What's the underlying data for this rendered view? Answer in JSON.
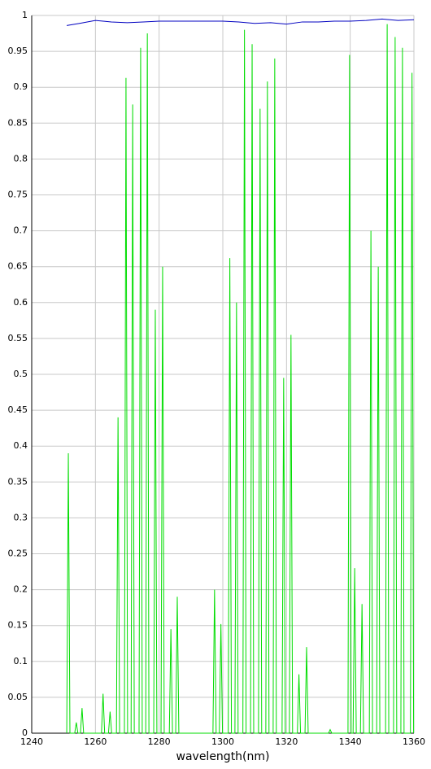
{
  "chart_data": {
    "type": "line",
    "xlabel": "wavelength(nm)",
    "xlim": [
      1240,
      1360
    ],
    "ylim": [
      0,
      1
    ],
    "xticks": [
      1240,
      1260,
      1280,
      1300,
      1320,
      1340,
      1360
    ],
    "yticks": [
      0,
      0.05,
      0.1,
      0.15,
      0.2,
      0.25,
      0.3,
      0.35,
      0.4,
      0.45,
      0.5,
      0.55,
      0.6,
      0.65,
      0.7,
      0.75,
      0.8,
      0.85,
      0.9,
      0.95,
      1
    ],
    "grid": true,
    "series": [
      {
        "color": "#0000c0",
        "x": [
          1251,
          1255,
          1260,
          1265,
          1270,
          1275,
          1280,
          1290,
          1300,
          1305,
          1310,
          1315,
          1320,
          1325,
          1330,
          1335,
          1340,
          1345,
          1350,
          1355,
          1360
        ],
        "values": [
          0.986,
          0.989,
          0.993,
          0.991,
          0.99,
          0.991,
          0.992,
          0.992,
          0.992,
          0.991,
          0.989,
          0.99,
          0.988,
          0.991,
          0.991,
          0.992,
          0.992,
          0.993,
          0.995,
          0.993,
          0.994
        ]
      },
      {
        "color": "#00dd00",
        "x": [
          1251,
          1251.5,
          1252,
          1253.5,
          1254,
          1254.5,
          1255.3,
          1255.8,
          1256.3,
          1261.9,
          1262.4,
          1262.9,
          1264.1,
          1264.6,
          1265.1,
          1266.6,
          1267.1,
          1267.6,
          1269.1,
          1269.6,
          1270.1,
          1271.2,
          1271.7,
          1272.2,
          1273.7,
          1274.2,
          1274.7,
          1275.8,
          1276.3,
          1276.8,
          1278.3,
          1278.8,
          1279.3,
          1280.6,
          1281.1,
          1281.6,
          1283.2,
          1283.7,
          1284.2,
          1285.2,
          1285.7,
          1286.2,
          1296.9,
          1297.4,
          1297.9,
          1298.9,
          1299.4,
          1299.9,
          1301.7,
          1302.2,
          1302.7,
          1303.8,
          1304.3,
          1304.8,
          1306.3,
          1306.8,
          1307.3,
          1308.7,
          1309.2,
          1309.7,
          1311.2,
          1311.7,
          1312.2,
          1313.5,
          1314,
          1314.5,
          1315.8,
          1316.3,
          1316.8,
          1318.6,
          1319.1,
          1319.6,
          1320.9,
          1321.4,
          1321.9,
          1323.4,
          1323.9,
          1324.4,
          1325.8,
          1326.3,
          1326.8,
          1333.2,
          1333.7,
          1334.2,
          1339.3,
          1339.8,
          1340.3,
          1340.9,
          1341.4,
          1341.9,
          1343.2,
          1343.7,
          1344.2,
          1346,
          1346.5,
          1347,
          1348.3,
          1348.8,
          1349.3,
          1351.1,
          1351.6,
          1352.1,
          1353.6,
          1354.1,
          1354.6,
          1355.9,
          1356.4,
          1356.9,
          1358.9,
          1359.4,
          1359.9
        ],
        "values": [
          0,
          0.39,
          0,
          0,
          0.015,
          0,
          0,
          0.035,
          0,
          0,
          0.055,
          0,
          0,
          0.03,
          0,
          0,
          0.44,
          0,
          0,
          0.913,
          0,
          0,
          0.876,
          0,
          0,
          0.955,
          0,
          0,
          0.975,
          0,
          0,
          0.59,
          0,
          0,
          0.65,
          0,
          0,
          0.145,
          0,
          0,
          0.19,
          0,
          0,
          0.2,
          0,
          0,
          0.152,
          0,
          0,
          0.662,
          0,
          0,
          0.6,
          0,
          0,
          0.98,
          0,
          0,
          0.96,
          0,
          0,
          0.87,
          0,
          0,
          0.908,
          0,
          0,
          0.94,
          0,
          0,
          0.495,
          0,
          0,
          0.555,
          0,
          0,
          0.082,
          0,
          0,
          0.12,
          0,
          0,
          0.005,
          0,
          0,
          0.945,
          0,
          0,
          0.23,
          0,
          0,
          0.18,
          0,
          0,
          0.7,
          0,
          0,
          0.65,
          0,
          0,
          0.988,
          0,
          0,
          0.97,
          0,
          0,
          0.955,
          0,
          0,
          0.92,
          0
        ]
      }
    ]
  }
}
